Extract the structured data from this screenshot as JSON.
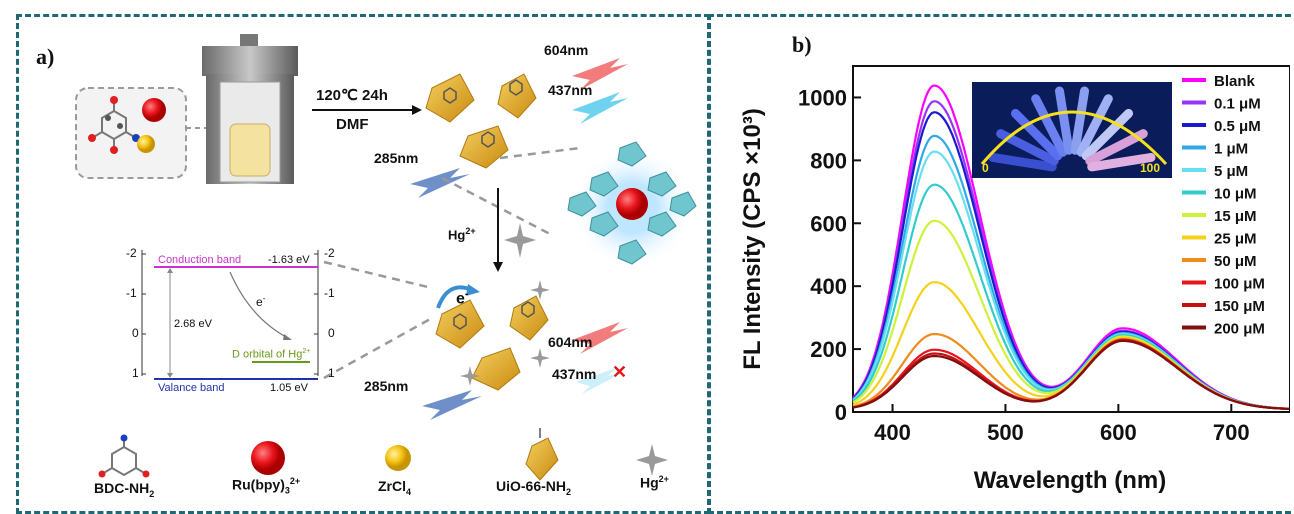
{
  "panel_a": {
    "label": "a)",
    "conditions_top": "120℃ 24h",
    "conditions_bottom": "DMF",
    "wl_604_top": "604nm",
    "wl_437_top": "437nm",
    "wl_285_top": "285nm",
    "hg_arrow": "Hg",
    "hg_arrow_sup": "2+",
    "electron": "e",
    "electron_sup": "-",
    "wl_604_bottom": "604nm",
    "wl_437_bottom": "437nm",
    "wl_285_bottom": "285nm",
    "quench_mark": "✕",
    "band": {
      "conduction": "Conduction band",
      "cond_energy": "-1.63 eV",
      "valance": "Valance band",
      "val_energy": "1.05 eV",
      "gap": "2.68 eV",
      "d_orbital": "D orbital of Hg",
      "d_orbital_sup": "2+",
      "e_label": "e",
      "e_sup": "-",
      "ticks": [
        "-2",
        "-1",
        "0",
        "1"
      ]
    },
    "legend": {
      "bdc": "BDC-NH",
      "bdc_sub": "2",
      "ru": "Ru(bpy)",
      "ru_sub": "3",
      "ru_sup": "2+",
      "zr": "ZrCl",
      "zr_sub": "4",
      "uio": "UiO-66-NH",
      "uio_sub": "2",
      "hg": "Hg",
      "hg_sup": "2+"
    },
    "colors": {
      "conduction": "#cc33cc",
      "valance": "#2233aa",
      "d_orbital": "#6a9a1a",
      "red_sphere": "#e8141c",
      "yellow_sphere": "#f5c518",
      "octahedron": "#e6b12a",
      "mof_blue": "#6fc6cf",
      "border": "#1f6a72"
    }
  },
  "panel_b": {
    "label": "b)",
    "inset_left": "0",
    "inset_right": "100"
  },
  "chart_data": {
    "type": "line",
    "xlabel": "Wavelength (nm)",
    "ylabel": "FL Intensity (CPS ×10³)",
    "xlim": [
      365,
      752
    ],
    "ylim": [
      0,
      1100
    ],
    "xticks": [
      400,
      500,
      600,
      700
    ],
    "yticks": [
      0,
      200,
      400,
      600,
      800,
      1000
    ],
    "peak1_nm": 437,
    "peak2_nm": 604,
    "valley_nm": 545,
    "legend_position": "top-right",
    "series": [
      {
        "name": "Blank",
        "color": "#ff00ff",
        "peak1": 1030,
        "peak2": 258,
        "valley": 72
      },
      {
        "name": "0.1 μM",
        "color": "#9933ff",
        "peak1": 980,
        "peak2": 250,
        "valley": 70
      },
      {
        "name": "0.5 μM",
        "color": "#1a1acc",
        "peak1": 945,
        "peak2": 247,
        "valley": 68
      },
      {
        "name": "1 μM",
        "color": "#2ea8e6",
        "peak1": 870,
        "peak2": 243,
        "valley": 66
      },
      {
        "name": "5 μM",
        "color": "#66e0f0",
        "peak1": 820,
        "peak2": 240,
        "valley": 64
      },
      {
        "name": "10 μM",
        "color": "#33cccc",
        "peak1": 715,
        "peak2": 236,
        "valley": 60
      },
      {
        "name": "15 μM",
        "color": "#ccf23a",
        "peak1": 600,
        "peak2": 232,
        "valley": 56
      },
      {
        "name": "25 μM",
        "color": "#f5d21a",
        "peak1": 405,
        "peak2": 228,
        "valley": 50
      },
      {
        "name": "50 μM",
        "color": "#f08a1a",
        "peak1": 240,
        "peak2": 224,
        "valley": 42
      },
      {
        "name": "100 μM",
        "color": "#e8141c",
        "peak1": 190,
        "peak2": 222,
        "valley": 38
      },
      {
        "name": "150 μM",
        "color": "#c41010",
        "peak1": 178,
        "peak2": 220,
        "valley": 36
      },
      {
        "name": "200 μM",
        "color": "#801010",
        "peak1": 170,
        "peak2": 218,
        "valley": 34
      }
    ]
  }
}
